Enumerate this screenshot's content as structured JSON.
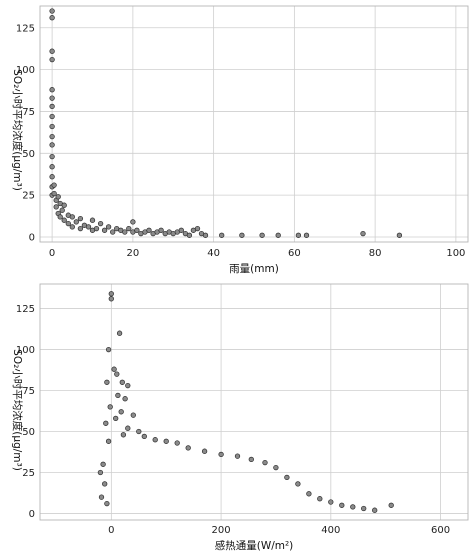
{
  "chart_data": [
    {
      "type": "scatter",
      "title": "",
      "xlabel": "雨量(mm)",
      "ylabel": "SO₂小时平均浓度(μg/m³)",
      "xlim": [
        -3,
        103
      ],
      "ylim": [
        -3,
        138
      ],
      "x_ticks": [
        0,
        20,
        40,
        60,
        80,
        100
      ],
      "y_ticks": [
        0,
        25,
        50,
        75,
        100,
        125
      ],
      "grid": true,
      "series": [
        {
          "points": [
            [
              0,
              135
            ],
            [
              0,
              131
            ],
            [
              0,
              111
            ],
            [
              0,
              106
            ],
            [
              0,
              88
            ],
            [
              0,
              83
            ],
            [
              0,
              78
            ],
            [
              0,
              72
            ],
            [
              0,
              66
            ],
            [
              0,
              60
            ],
            [
              0,
              55
            ],
            [
              0,
              48
            ],
            [
              0,
              42
            ],
            [
              0,
              36
            ],
            [
              0,
              30
            ],
            [
              0,
              25
            ],
            [
              0.5,
              31
            ],
            [
              0.5,
              26
            ],
            [
              1,
              22
            ],
            [
              1,
              18
            ],
            [
              1.5,
              24
            ],
            [
              1.5,
              14
            ],
            [
              2,
              20
            ],
            [
              2,
              12
            ],
            [
              2.5,
              16
            ],
            [
              3,
              10
            ],
            [
              3,
              19
            ],
            [
              4,
              8
            ],
            [
              4,
              13
            ],
            [
              5,
              12
            ],
            [
              5,
              6
            ],
            [
              6,
              9
            ],
            [
              7,
              11
            ],
            [
              7,
              5
            ],
            [
              8,
              7
            ],
            [
              9,
              6
            ],
            [
              10,
              10
            ],
            [
              10,
              4
            ],
            [
              11,
              5
            ],
            [
              12,
              8
            ],
            [
              13,
              4
            ],
            [
              14,
              6
            ],
            [
              15,
              3
            ],
            [
              16,
              5
            ],
            [
              17,
              4
            ],
            [
              18,
              3
            ],
            [
              19,
              5
            ],
            [
              20,
              9
            ],
            [
              20,
              3
            ],
            [
              21,
              4
            ],
            [
              22,
              2
            ],
            [
              23,
              3
            ],
            [
              24,
              4
            ],
            [
              25,
              2
            ],
            [
              26,
              3
            ],
            [
              27,
              4
            ],
            [
              28,
              2
            ],
            [
              29,
              3
            ],
            [
              30,
              2
            ],
            [
              31,
              3
            ],
            [
              32,
              4
            ],
            [
              33,
              2
            ],
            [
              34,
              1
            ],
            [
              35,
              4
            ],
            [
              36,
              5
            ],
            [
              37,
              2
            ],
            [
              38,
              1
            ],
            [
              42,
              1
            ],
            [
              47,
              1
            ],
            [
              52,
              1
            ],
            [
              56,
              1
            ],
            [
              61,
              1
            ],
            [
              63,
              1
            ],
            [
              77,
              2
            ],
            [
              86,
              1
            ]
          ]
        }
      ]
    },
    {
      "type": "scatter",
      "title": "",
      "xlabel": "感热通量(W/m²)",
      "ylabel": "SO₂小时平均浓度(μg/m³)",
      "xlim": [
        -130,
        650
      ],
      "ylim": [
        -4,
        140
      ],
      "x_ticks": [
        0,
        200,
        400,
        600
      ],
      "y_ticks": [
        0,
        25,
        50,
        75,
        100,
        125
      ],
      "grid": true,
      "series": [
        {
          "points": [
            [
              0,
              134
            ],
            [
              0,
              131
            ],
            [
              15,
              110
            ],
            [
              -5,
              100
            ],
            [
              5,
              88
            ],
            [
              10,
              85
            ],
            [
              -8,
              80
            ],
            [
              20,
              80
            ],
            [
              30,
              78
            ],
            [
              12,
              72
            ],
            [
              25,
              70
            ],
            [
              -2,
              65
            ],
            [
              18,
              62
            ],
            [
              40,
              60
            ],
            [
              8,
              58
            ],
            [
              -10,
              55
            ],
            [
              30,
              52
            ],
            [
              50,
              50
            ],
            [
              22,
              48
            ],
            [
              60,
              47
            ],
            [
              80,
              45
            ],
            [
              -5,
              44
            ],
            [
              100,
              44
            ],
            [
              120,
              43
            ],
            [
              140,
              40
            ],
            [
              170,
              38
            ],
            [
              200,
              36
            ],
            [
              230,
              35
            ],
            [
              255,
              33
            ],
            [
              280,
              31
            ],
            [
              300,
              28
            ],
            [
              320,
              22
            ],
            [
              340,
              18
            ],
            [
              360,
              12
            ],
            [
              380,
              9
            ],
            [
              400,
              7
            ],
            [
              420,
              5
            ],
            [
              440,
              4
            ],
            [
              460,
              3
            ],
            [
              480,
              2
            ],
            [
              510,
              5
            ],
            [
              -15,
              30
            ],
            [
              -20,
              25
            ],
            [
              -12,
              18
            ],
            [
              -18,
              10
            ],
            [
              -8,
              6
            ]
          ]
        }
      ]
    }
  ]
}
